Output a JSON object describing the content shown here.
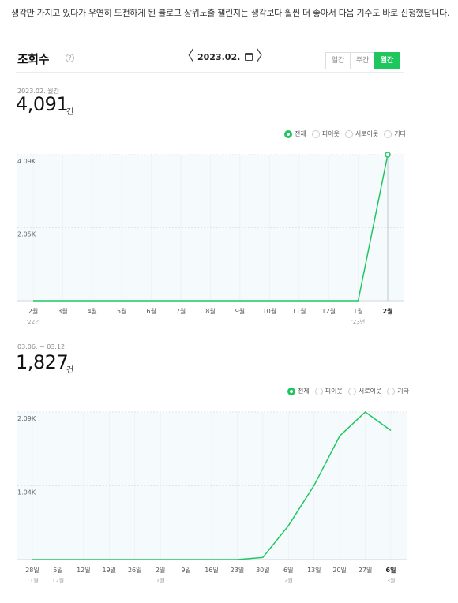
{
  "intro_text": "생각만 가지고 있다가 우연히 도전하게 된 블로그 상위노출 챌린지는 생각보다 훨씬 더 좋아서 다음 기수도 바로 신청했답니다.",
  "header": {
    "title": "조회수",
    "help_label": "?",
    "date": "2023.02.",
    "prev_label": "〈",
    "next_label": "〉",
    "periods": [
      {
        "label": "일간",
        "active": false
      },
      {
        "label": "주간",
        "active": false
      },
      {
        "label": "월간",
        "active": true
      }
    ]
  },
  "section1": {
    "subtitle": "2023.02. 월간",
    "total": "4,091",
    "unit": "건",
    "legend": [
      {
        "label": "전체",
        "active": true
      },
      {
        "label": "피이웃",
        "active": false
      },
      {
        "label": "서로이웃",
        "active": false
      },
      {
        "label": "기타",
        "active": false
      }
    ]
  },
  "section2": {
    "subtitle": "03.06. ~ 03.12.",
    "total": "1,827",
    "unit": "건",
    "legend": [
      {
        "label": "전체",
        "active": true
      },
      {
        "label": "피이웃",
        "active": false
      },
      {
        "label": "서로이웃",
        "active": false
      },
      {
        "label": "기타",
        "active": false
      }
    ]
  },
  "chart_data": [
    {
      "type": "line",
      "categories": [
        "2월",
        "3월",
        "4월",
        "5월",
        "6월",
        "7월",
        "8월",
        "9월",
        "10월",
        "11월",
        "12월",
        "1월",
        "2월"
      ],
      "sublabels": [
        "'22년",
        "",
        "",
        "",
        "",
        "",
        "",
        "",
        "",
        "",
        "",
        "'23년",
        ""
      ],
      "values": [
        0,
        0,
        0,
        0,
        0,
        0,
        0,
        0,
        0,
        0,
        0,
        0,
        4091
      ],
      "yticks": [
        {
          "v": 4091,
          "label": "4.09K"
        },
        {
          "v": 2045,
          "label": "2.05K"
        }
      ],
      "ylim": [
        0,
        4091
      ],
      "color": "#1ec75e"
    },
    {
      "type": "line",
      "categories": [
        "28일",
        "5일",
        "12일",
        "19일",
        "26일",
        "2일",
        "9일",
        "16일",
        "23일",
        "30일",
        "6일",
        "13일",
        "20일",
        "27일",
        "6일"
      ],
      "sublabels": [
        "11월",
        "12월",
        "",
        "",
        "",
        "1월",
        "",
        "",
        "",
        "",
        "2월",
        "",
        "",
        "",
        "3월"
      ],
      "values": [
        0,
        0,
        0,
        0,
        0,
        0,
        0,
        0,
        0,
        30,
        480,
        1050,
        1750,
        2090,
        1827
      ],
      "yticks": [
        {
          "v": 2090,
          "label": "2.09K"
        },
        {
          "v": 1045,
          "label": "1.04K"
        }
      ],
      "ylim": [
        0,
        2090
      ],
      "color": "#1ec75e"
    }
  ]
}
